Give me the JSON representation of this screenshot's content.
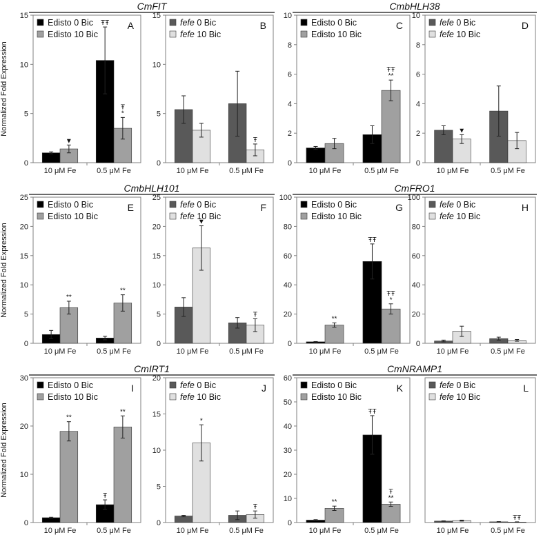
{
  "figure": {
    "y_axis_label": "Normalized Fold Expression",
    "colors": {
      "edisto0": "#000000",
      "edisto10": "#a0a0a0",
      "fefe0": "#595959",
      "fefe10": "#e0e0e0"
    },
    "gene_titles": [
      {
        "label": "CmFIT",
        "panels": [
          "A",
          "B"
        ]
      },
      {
        "label": "CmbHLH38",
        "panels": [
          "C",
          "D"
        ]
      },
      {
        "label": "CmbHLH101",
        "panels": [
          "E",
          "F"
        ]
      },
      {
        "label": "CmFRO1",
        "panels": [
          "G",
          "H"
        ]
      },
      {
        "label": "CmIRT1",
        "panels": [
          "I",
          "J"
        ]
      },
      {
        "label": "CmNRAMP1",
        "panels": [
          "K",
          "L"
        ]
      }
    ]
  },
  "chart_data": [
    {
      "panel": "A",
      "gene": "CmFIT",
      "type": "bar",
      "categories": [
        "10 μM Fe",
        "0.5 μM Fe"
      ],
      "ylim": [
        0,
        15
      ],
      "yticks": [
        0,
        5,
        10,
        15
      ],
      "series": [
        {
          "name": "Edisto 0 Bic",
          "italic": "",
          "rest": "Edisto 0 Bic",
          "color": "#000000",
          "values": [
            1.0,
            10.4
          ],
          "errors": [
            0.1,
            3.4
          ],
          "marks": [
            "",
            "ŦŦ"
          ]
        },
        {
          "name": "Edisto 10 Bic",
          "italic": "",
          "rest": "Edisto 10 Bic",
          "color": "#a0a0a0",
          "values": [
            1.4,
            3.5
          ],
          "errors": [
            0.4,
            1.1
          ],
          "marks": [
            "▼",
            "Ŧ\n*"
          ]
        }
      ]
    },
    {
      "panel": "B",
      "gene": "CmFIT",
      "type": "bar",
      "categories": [
        "10 μM Fe",
        "0.5 μM Fe"
      ],
      "ylim": [
        0,
        15
      ],
      "yticks": [
        0,
        5,
        10,
        15
      ],
      "series": [
        {
          "name": "fefe 0 Bic",
          "italic": "fefe",
          "rest": " 0 Bic",
          "color": "#595959",
          "values": [
            5.4,
            6.0
          ],
          "errors": [
            1.4,
            3.3
          ],
          "marks": [
            "",
            ""
          ]
        },
        {
          "name": "fefe 10 Bic",
          "italic": "fefe",
          "rest": " 10 Bic",
          "color": "#e0e0e0",
          "values": [
            3.3,
            1.3
          ],
          "errors": [
            0.7,
            0.6
          ],
          "marks": [
            "",
            "Ŧ"
          ]
        }
      ]
    },
    {
      "panel": "C",
      "gene": "CmbHLH38",
      "type": "bar",
      "categories": [
        "10 μM Fe",
        "0.5 μM Fe"
      ],
      "ylim": [
        0,
        10
      ],
      "yticks": [
        0,
        2,
        4,
        6,
        8,
        10
      ],
      "series": [
        {
          "name": "Edisto 0 Bic",
          "italic": "",
          "rest": "Edisto 0 Bic",
          "color": "#000000",
          "values": [
            1.0,
            1.9
          ],
          "errors": [
            0.1,
            0.6
          ],
          "marks": [
            "",
            ""
          ]
        },
        {
          "name": "Edisto 10 Bic",
          "italic": "",
          "rest": "Edisto 10 Bic",
          "color": "#a0a0a0",
          "values": [
            1.3,
            4.9
          ],
          "errors": [
            0.35,
            0.7
          ],
          "marks": [
            "",
            "ŦŦ\n**"
          ]
        }
      ]
    },
    {
      "panel": "D",
      "gene": "CmbHLH38",
      "type": "bar",
      "categories": [
        "10 μM Fe",
        "0.5 μM Fe"
      ],
      "ylim": [
        0,
        10
      ],
      "yticks": [
        0,
        2,
        4,
        6,
        8,
        10
      ],
      "series": [
        {
          "name": "fefe 0 Bic",
          "italic": "fefe",
          "rest": " 0 Bic",
          "color": "#595959",
          "values": [
            2.2,
            3.5
          ],
          "errors": [
            0.3,
            1.7
          ],
          "marks": [
            "",
            ""
          ]
        },
        {
          "name": "fefe 10 Bic",
          "italic": "fefe",
          "rest": " 10 Bic",
          "color": "#e0e0e0",
          "values": [
            1.6,
            1.5
          ],
          "errors": [
            0.3,
            0.55
          ],
          "marks": [
            "▼",
            ""
          ]
        }
      ]
    },
    {
      "panel": "E",
      "gene": "CmbHLH101",
      "type": "bar",
      "categories": [
        "10 μM Fe",
        "0.5 μM Fe"
      ],
      "ylim": [
        0,
        25
      ],
      "yticks": [
        0,
        5,
        10,
        15,
        20,
        25
      ],
      "series": [
        {
          "name": "Edisto 0 Bic",
          "italic": "",
          "rest": "Edisto 0 Bic",
          "color": "#000000",
          "values": [
            1.5,
            0.9
          ],
          "errors": [
            0.7,
            0.3
          ],
          "marks": [
            "",
            ""
          ]
        },
        {
          "name": "Edisto 10 Bic",
          "italic": "",
          "rest": "Edisto 10 Bic",
          "color": "#a0a0a0",
          "values": [
            6.1,
            6.9
          ],
          "errors": [
            1.1,
            1.4
          ],
          "marks": [
            "**",
            "**"
          ]
        }
      ]
    },
    {
      "panel": "F",
      "gene": "CmbHLH101",
      "type": "bar",
      "categories": [
        "10 μM Fe",
        "0.5 μM Fe"
      ],
      "ylim": [
        0,
        25
      ],
      "yticks": [
        0,
        5,
        10,
        15,
        20,
        25
      ],
      "series": [
        {
          "name": "fefe 0 Bic",
          "italic": "fefe",
          "rest": " 0 Bic",
          "color": "#595959",
          "values": [
            6.2,
            3.5
          ],
          "errors": [
            1.6,
            0.9
          ],
          "marks": [
            "",
            ""
          ]
        },
        {
          "name": "fefe 10 Bic",
          "italic": "fefe",
          "rest": " 10 Bic",
          "color": "#e0e0e0",
          "values": [
            16.3,
            3.1
          ],
          "errors": [
            3.8,
            1.1
          ],
          "marks": [
            "▼",
            "Ŧ"
          ]
        }
      ]
    },
    {
      "panel": "G",
      "gene": "CmFRO1",
      "type": "bar",
      "categories": [
        "10 μM Fe",
        "0.5 μM Fe"
      ],
      "ylim": [
        0,
        100
      ],
      "yticks": [
        0,
        20,
        40,
        60,
        80,
        100
      ],
      "series": [
        {
          "name": "Edisto 0 Bic",
          "italic": "",
          "rest": "Edisto 0 Bic",
          "color": "#000000",
          "values": [
            1.0,
            56.0
          ],
          "errors": [
            0.2,
            12.0
          ],
          "marks": [
            "",
            "ŦŦ"
          ]
        },
        {
          "name": "Edisto 10 Bic",
          "italic": "",
          "rest": "Edisto 10 Bic",
          "color": "#a0a0a0",
          "values": [
            12.5,
            23.5
          ],
          "errors": [
            1.5,
            3.5
          ],
          "marks": [
            "**",
            "ŦŦ\n*"
          ]
        }
      ]
    },
    {
      "panel": "H",
      "gene": "CmFRO1",
      "type": "bar",
      "categories": [
        "10 μM Fe",
        "0.5 μM Fe"
      ],
      "ylim": [
        0,
        100
      ],
      "yticks": [
        0,
        20,
        40,
        60,
        80,
        100
      ],
      "series": [
        {
          "name": "fefe 0 Bic",
          "italic": "fefe",
          "rest": " 0 Bic",
          "color": "#595959",
          "values": [
            1.6,
            3.2
          ],
          "errors": [
            0.6,
            1.0
          ],
          "marks": [
            "",
            ""
          ]
        },
        {
          "name": "fefe 10 Bic",
          "italic": "fefe",
          "rest": " 10 Bic",
          "color": "#e0e0e0",
          "values": [
            8.2,
            2.0
          ],
          "errors": [
            3.5,
            0.6
          ],
          "marks": [
            "",
            ""
          ]
        }
      ]
    },
    {
      "panel": "I",
      "gene": "CmIRT1",
      "type": "bar",
      "categories": [
        "10 μM Fe",
        "0.5 μM Fe"
      ],
      "ylim": [
        0,
        30
      ],
      "yticks": [
        0,
        10,
        20,
        30
      ],
      "series": [
        {
          "name": "Edisto 0 Bic",
          "italic": "",
          "rest": "Edisto 0 Bic",
          "color": "#000000",
          "values": [
            1.0,
            3.7
          ],
          "errors": [
            0.1,
            1.0
          ],
          "marks": [
            "",
            "Ŧ"
          ]
        },
        {
          "name": "Edisto 10 Bic",
          "italic": "",
          "rest": "Edisto 10 Bic",
          "color": "#a0a0a0",
          "values": [
            18.9,
            19.8
          ],
          "errors": [
            2.0,
            2.3
          ],
          "marks": [
            "**",
            "**"
          ]
        }
      ]
    },
    {
      "panel": "J",
      "gene": "CmIRT1",
      "type": "bar",
      "categories": [
        "10 μM Fe",
        "0.5 μM Fe"
      ],
      "ylim": [
        0,
        20
      ],
      "yticks": [
        0,
        5,
        10,
        15,
        20
      ],
      "series": [
        {
          "name": "fefe 0 Bic",
          "italic": "fefe",
          "rest": " 0 Bic",
          "color": "#595959",
          "values": [
            0.9,
            1.0
          ],
          "errors": [
            0.1,
            0.6
          ],
          "marks": [
            "",
            ""
          ]
        },
        {
          "name": "fefe 10 Bic",
          "italic": "fefe",
          "rest": " 10 Bic",
          "color": "#e0e0e0",
          "values": [
            11.0,
            1.1
          ],
          "errors": [
            2.5,
            0.5
          ],
          "marks": [
            "*",
            "Ŧ"
          ]
        }
      ]
    },
    {
      "panel": "K",
      "gene": "CmNRAMP1",
      "type": "bar",
      "categories": [
        "10 μM Fe",
        "0.5 μM Fe"
      ],
      "ylim": [
        0,
        60
      ],
      "yticks": [
        0,
        10,
        20,
        30,
        40,
        50,
        60
      ],
      "series": [
        {
          "name": "Edisto 0 Bic",
          "italic": "",
          "rest": "Edisto 0 Bic",
          "color": "#000000",
          "values": [
            1.0,
            36.3
          ],
          "errors": [
            0.2,
            8.0
          ],
          "marks": [
            "",
            "ŦŦ"
          ]
        },
        {
          "name": "Edisto 10 Bic",
          "italic": "",
          "rest": "Edisto 10 Bic",
          "color": "#a0a0a0",
          "values": [
            5.9,
            7.6
          ],
          "errors": [
            0.9,
            0.9
          ],
          "marks": [
            "**",
            "Ŧ\n**"
          ]
        }
      ]
    },
    {
      "panel": "L",
      "gene": "CmNRAMP1",
      "type": "bar",
      "categories": [
        "10 μM Fe",
        "0.5 μM Fe"
      ],
      "ylim": [
        0,
        60
      ],
      "yticks": [],
      "series": [
        {
          "name": "fefe 0 Bic",
          "italic": "fefe",
          "rest": " 0 Bic",
          "color": "#595959",
          "values": [
            0.6,
            0.3
          ],
          "errors": [
            0.1,
            0.1
          ],
          "marks": [
            "",
            ""
          ]
        },
        {
          "name": "fefe 10 Bic",
          "italic": "fefe",
          "rest": " 10 Bic",
          "color": "#e0e0e0",
          "values": [
            0.8,
            0.2
          ],
          "errors": [
            0.2,
            0.1
          ],
          "marks": [
            "",
            "ŦŦ"
          ]
        }
      ]
    }
  ]
}
